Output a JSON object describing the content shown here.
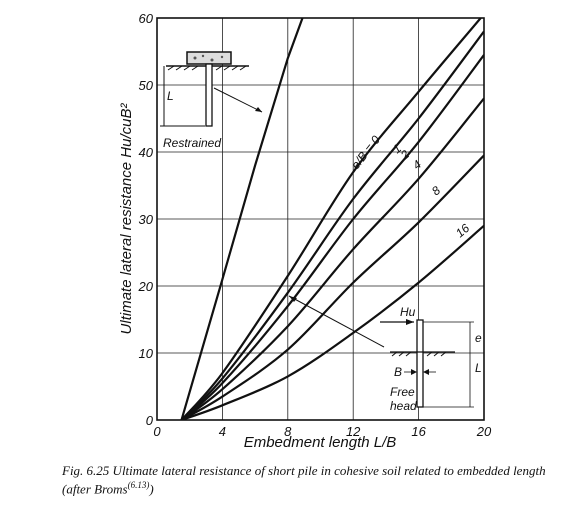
{
  "chart_data": {
    "type": "line",
    "xlabel": "Embedment length L/B",
    "ylabel": "Ultimate lateral resistance Hu/cuB²",
    "xlim": [
      0,
      20
    ],
    "ylim": [
      0,
      60
    ],
    "x_ticks": [
      "0",
      "4",
      "8",
      "12",
      "16",
      "20"
    ],
    "y_ticks": [
      "0",
      "10",
      "20",
      "30",
      "40",
      "50",
      "60"
    ],
    "grid": true,
    "series": [
      {
        "name": "Restrained",
        "points": [
          [
            1.5,
            0
          ],
          [
            4,
            21
          ],
          [
            6,
            38
          ],
          [
            8,
            54
          ],
          [
            8.9,
            60
          ]
        ]
      },
      {
        "name": "0",
        "points": [
          [
            1.5,
            0
          ],
          [
            4,
            7
          ],
          [
            8,
            21.5
          ],
          [
            12,
            37
          ],
          [
            16,
            49
          ],
          [
            19.8,
            60
          ]
        ]
      },
      {
        "name": "1",
        "points": [
          [
            1.5,
            0
          ],
          [
            4,
            6.2
          ],
          [
            8,
            19
          ],
          [
            12,
            33
          ],
          [
            16,
            45
          ],
          [
            20,
            58
          ]
        ]
      },
      {
        "name": "2",
        "points": [
          [
            1.5,
            0
          ],
          [
            4,
            5.5
          ],
          [
            8,
            17
          ],
          [
            12,
            30
          ],
          [
            16,
            41.5
          ],
          [
            20,
            54.5
          ]
        ]
      },
      {
        "name": "4",
        "points": [
          [
            1.5,
            0
          ],
          [
            4,
            4.6
          ],
          [
            8,
            14
          ],
          [
            12,
            25.5
          ],
          [
            16,
            36
          ],
          [
            20,
            48
          ]
        ]
      },
      {
        "name": "8",
        "points": [
          [
            1.5,
            0
          ],
          [
            4,
            3.5
          ],
          [
            8,
            10.5
          ],
          [
            12,
            20.5
          ],
          [
            16,
            29.5
          ],
          [
            20,
            39.5
          ]
        ]
      },
      {
        "name": "16",
        "points": [
          [
            1.5,
            0
          ],
          [
            4,
            2.2
          ],
          [
            8,
            6.5
          ],
          [
            12,
            13
          ],
          [
            16,
            20.5
          ],
          [
            20,
            29
          ]
        ]
      }
    ],
    "annotations": {
      "restrained_label": "Restrained",
      "restrained_dim": "L",
      "family_label": "e/B = 0",
      "label_1": "1",
      "label_2": "2",
      "label_4": "4",
      "label_8": "8",
      "label_16": "16",
      "free_force": "Hu",
      "free_e": "e",
      "free_B": "B",
      "free_L": "L",
      "free_head_line1": "Free",
      "free_head_line2": "head"
    }
  },
  "caption": {
    "main": "Fig. 6.25  Ultimate lateral resistance of short pile in cohesive soil related to embedded length (after Broms",
    "ref": "(6.13)",
    "close": ")"
  }
}
